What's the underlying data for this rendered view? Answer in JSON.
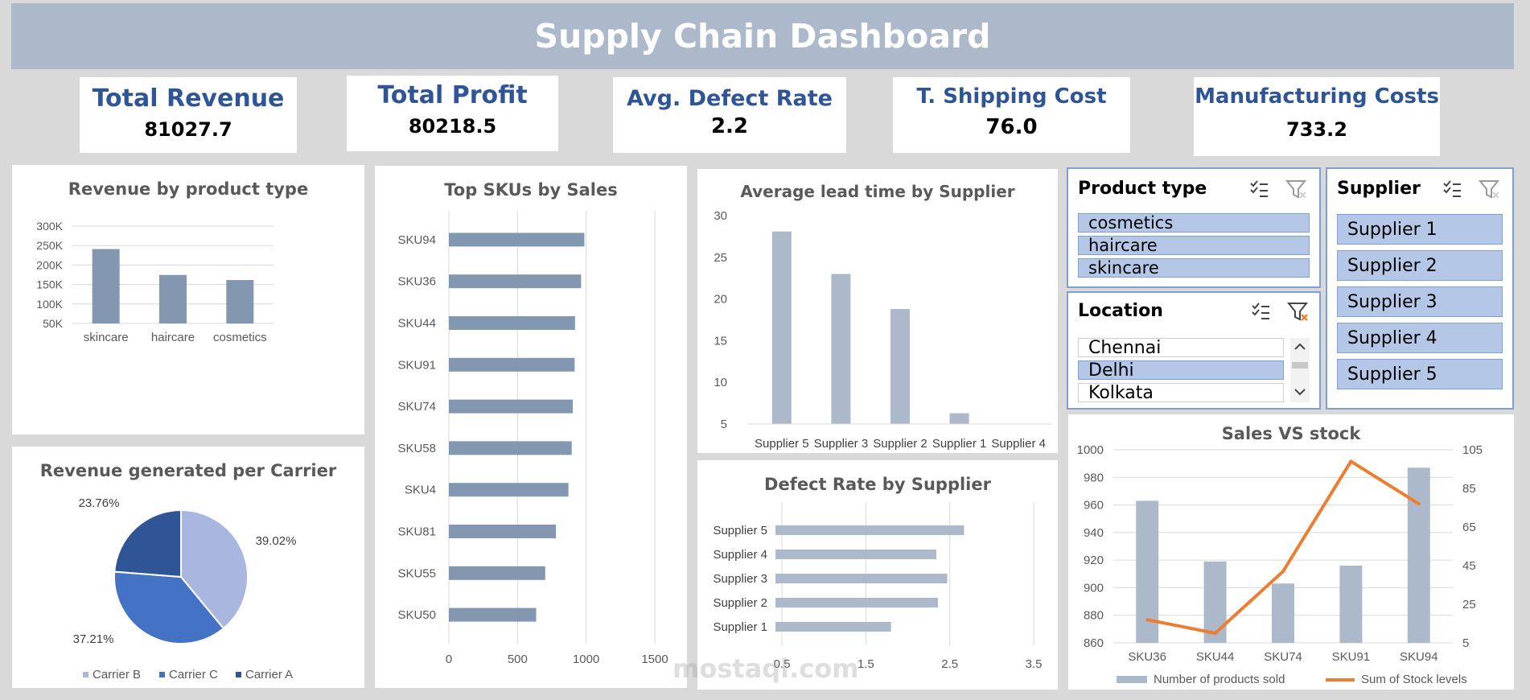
{
  "dashboard": {
    "title": "Supply Chain Dashboard"
  },
  "kpis": [
    {
      "label": "Total Revenue",
      "value": "81027.7"
    },
    {
      "label": "Total Profit",
      "value": "80218.5"
    },
    {
      "label": "Avg. Defect Rate",
      "value": "2.2"
    },
    {
      "label": "T. Shipping Cost",
      "value": "76.0"
    },
    {
      "label": "Manufacturing Costs",
      "value": "733.2"
    }
  ],
  "slicers": {
    "product_type": {
      "title": "Product type",
      "items": [
        "cosmetics",
        "haircare",
        "skincare"
      ],
      "selected": [
        true,
        true,
        true
      ]
    },
    "location": {
      "title": "Location",
      "items": [
        "Chennai",
        "Delhi",
        "Kolkata"
      ],
      "selected": [
        false,
        true,
        false
      ]
    },
    "supplier": {
      "title": "Supplier",
      "items": [
        "Supplier 1",
        "Supplier 2",
        "Supplier 3",
        "Supplier 4",
        "Supplier 5"
      ],
      "selected": [
        true,
        true,
        true,
        true,
        true
      ]
    }
  },
  "watermark": {
    "text": "mostaql.com"
  },
  "colors": {
    "bar": "#8497b0",
    "bar_light": "#acb9ca",
    "line": "#ed7d31",
    "carrier_b": "#a9b7e0",
    "carrier_c": "#4472c4",
    "carrier_a": "#2f5597"
  },
  "chart_data": [
    {
      "id": "revenue_by_product_type",
      "type": "bar",
      "title": "Revenue by product type",
      "categories": [
        "skincare",
        "haircare",
        "cosmetics"
      ],
      "values": [
        241000,
        174500,
        161500
      ],
      "ylim": [
        50000,
        300000
      ],
      "yticks": [
        50000,
        100000,
        150000,
        200000,
        250000,
        300000
      ],
      "ytick_labels": [
        "50K",
        "100K",
        "150K",
        "200K",
        "250K",
        "300K"
      ],
      "grid": true
    },
    {
      "id": "top_skus_by_sales",
      "type": "bar",
      "orientation": "horizontal",
      "title": "Top SKUs by Sales",
      "categories": [
        "SKU94",
        "SKU36",
        "SKU44",
        "SKU91",
        "SKU74",
        "SKU58",
        "SKU4",
        "SKU81",
        "SKU55",
        "SKU50"
      ],
      "values": [
        987,
        963,
        919,
        916,
        903,
        895,
        871,
        780,
        702,
        636
      ],
      "xlim": [
        0,
        1500
      ],
      "xticks": [
        0,
        500,
        1000,
        1500
      ],
      "grid": true
    },
    {
      "id": "avg_lead_time_by_supplier",
      "type": "bar",
      "title": "Average lead time by Supplier",
      "categories": [
        "Supplier 5",
        "Supplier 3",
        "Supplier 2",
        "Supplier 1",
        "Supplier 4"
      ],
      "values": [
        28.1,
        23.0,
        18.8,
        6.3,
        4.5
      ],
      "ylim": [
        5,
        30
      ],
      "yticks": [
        5,
        10,
        15,
        20,
        25,
        30
      ],
      "grid": false
    },
    {
      "id": "revenue_per_carrier",
      "type": "pie",
      "title": "Revenue generated per Carrier",
      "categories": [
        "Carrier B",
        "Carrier C",
        "Carrier A"
      ],
      "values": [
        39.02,
        37.21,
        23.76
      ],
      "data_labels": [
        "39.02%",
        "37.21%",
        "23.76%"
      ],
      "legend": "bottom"
    },
    {
      "id": "defect_rate_by_supplier",
      "type": "bar",
      "orientation": "horizontal",
      "title": "Defect Rate by Supplier",
      "categories": [
        "Supplier 5",
        "Supplier 4",
        "Supplier 3",
        "Supplier 2",
        "Supplier 1"
      ],
      "values": [
        2.67,
        2.34,
        2.47,
        2.36,
        1.8
      ],
      "xlim": [
        0.5,
        3.5
      ],
      "xticks": [
        0.5,
        1.5,
        2.5,
        3.5
      ],
      "grid": true
    },
    {
      "id": "sales_vs_stock",
      "type": "bar",
      "title": "Sales VS stock",
      "categories": [
        "SKU36",
        "SKU44",
        "SKU74",
        "SKU91",
        "SKU94"
      ],
      "series": [
        {
          "name": "Number of products sold",
          "type": "bar",
          "axis": "left",
          "values": [
            963,
            919,
            903,
            916,
            987
          ]
        },
        {
          "name": "Sum of Stock levels",
          "type": "line",
          "axis": "right",
          "values": [
            17,
            10,
            42,
            99,
            77
          ]
        }
      ],
      "ylim": [
        860,
        1000
      ],
      "yticks": [
        860,
        880,
        900,
        920,
        940,
        960,
        980,
        1000
      ],
      "y2lim": [
        5,
        105
      ],
      "y2ticks": [
        5,
        25,
        45,
        65,
        85,
        105
      ],
      "legend": "bottom",
      "grid": true
    }
  ]
}
